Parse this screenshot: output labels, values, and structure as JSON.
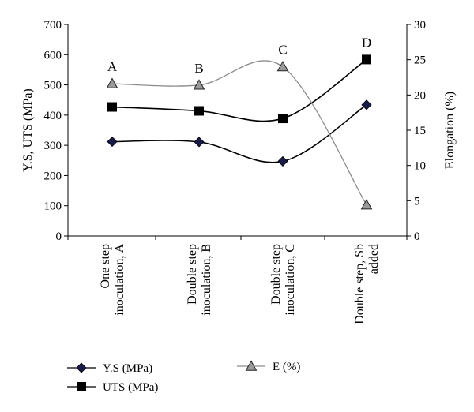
{
  "chart_data": {
    "type": "line",
    "categories": [
      "One step inoculation, A",
      "Double step inoculation, B",
      "Double step inoculation, C",
      "Double step, Sb added"
    ],
    "category_label_lines": [
      [
        "One step",
        "inoculation, A"
      ],
      [
        "Double step",
        "inoculation, B"
      ],
      [
        "Double step",
        "inoculation, C"
      ],
      [
        "Double step, Sb",
        "added"
      ]
    ],
    "point_labels": [
      "A",
      "B",
      "C",
      "D"
    ],
    "ylabel": "Y.S, UTS (MPa)",
    "y2label": "Elongation (%)",
    "ylim": [
      0,
      700
    ],
    "y2lim": [
      0,
      30
    ],
    "yticks": [
      "0",
      "100",
      "200",
      "300",
      "400",
      "500",
      "600",
      "700"
    ],
    "y2ticks": [
      "0",
      "5",
      "10",
      "15",
      "20",
      "25",
      "30"
    ],
    "grid": false,
    "legend_position": "bottom",
    "series": [
      {
        "name": "Y.S (MPa)",
        "axis": "left",
        "marker": "diamond",
        "color": "#1a1a4a",
        "values": [
          312,
          311,
          247,
          434
        ]
      },
      {
        "name": "UTS (MPa)",
        "axis": "left",
        "marker": "square",
        "color": "#000000",
        "values": [
          427,
          414,
          389,
          584
        ]
      },
      {
        "name": "E (%)",
        "axis": "right",
        "marker": "triangle",
        "color": "#808080",
        "values": [
          21.6,
          21.4,
          24,
          4.4
        ]
      }
    ]
  }
}
